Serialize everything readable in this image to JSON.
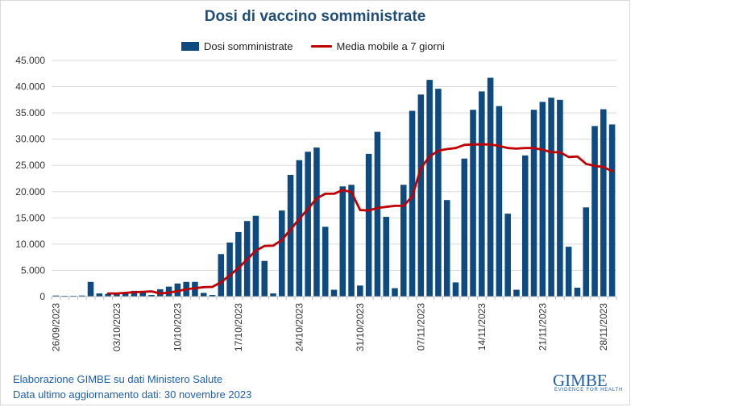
{
  "title": "Dosi di vaccino somministrate",
  "footer": {
    "line1": "Elaborazione GIMBE su dati Ministero Salute",
    "line2": "Data ultimo aggiornamento dati: 30 novembre 2023"
  },
  "logo": {
    "name": "GIMBE",
    "tagline": "EVIDENCE FOR HEALTH"
  },
  "colors": {
    "bars": "#0e4a80",
    "line": "#c00000",
    "title": "#1f4e79",
    "footer": "#1f5fa3",
    "grid": "#d9d9d9"
  },
  "chart_data": {
    "type": "bar",
    "title": "Dosi di vaccino somministrate",
    "ylim": [
      0,
      45000
    ],
    "yticks": [
      "0",
      "5.000",
      "10.000",
      "15.000",
      "20.000",
      "25.000",
      "30.000",
      "35.000",
      "40.000",
      "45.000"
    ],
    "xtick_labels": [
      "26/09/2023",
      "03/10/2023",
      "10/10/2023",
      "17/10/2023",
      "24/10/2023",
      "31/10/2023",
      "07/11/2023",
      "14/11/2023",
      "21/11/2023",
      "28/11/2023"
    ],
    "xtick_index": [
      0,
      7,
      14,
      21,
      28,
      35,
      42,
      49,
      56,
      63
    ],
    "grid": true,
    "legend_position": "top",
    "series": [
      {
        "name": "Dosi somministrate",
        "type": "bar",
        "values": [
          200,
          150,
          150,
          200,
          2800,
          600,
          500,
          700,
          800,
          1100,
          1000,
          300,
          1400,
          1900,
          2500,
          2800,
          2800,
          700,
          300,
          8100,
          10300,
          12300,
          14400,
          15400,
          6800,
          600,
          16400,
          23200,
          26000,
          27600,
          28400,
          13300,
          1300,
          21000,
          21300,
          2100,
          27200,
          31400,
          15200,
          1600,
          21300,
          35400,
          38500,
          41300,
          39600,
          18400,
          2700,
          26300,
          35600,
          39100,
          41700,
          36300,
          15800,
          1300,
          26900,
          35600,
          37100,
          37900,
          37500,
          9500,
          1700,
          17000,
          32500,
          35700,
          32800
        ]
      },
      {
        "name": "Media mobile a 7 giorni",
        "type": "line",
        "values": [
          null,
          null,
          null,
          null,
          null,
          null,
          600,
          600,
          700,
          850,
          900,
          1000,
          600,
          750,
          1050,
          1400,
          1600,
          1800,
          1850,
          2750,
          4050,
          5450,
          7100,
          8750,
          9650,
          9700,
          10800,
          12800,
          14800,
          16700,
          18700,
          19600,
          19600,
          20300,
          19900,
          16500,
          16400,
          16900,
          17100,
          17300,
          17300,
          19100,
          24500,
          26700,
          27800,
          28100,
          28300,
          28900,
          29000,
          29000,
          29000,
          28700,
          28300,
          28200,
          28300,
          28300,
          28000,
          27500,
          27500,
          26600,
          26700,
          25300,
          24900,
          24700,
          23900
        ]
      }
    ]
  }
}
